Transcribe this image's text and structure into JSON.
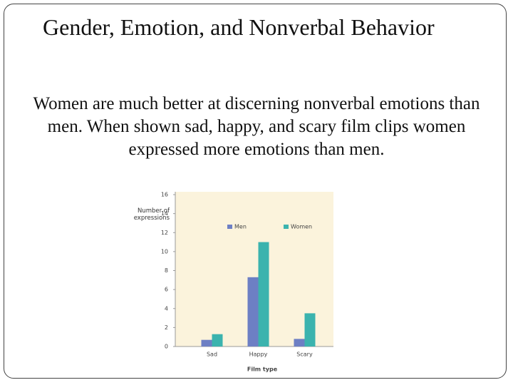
{
  "slide": {
    "title": "Gender, Emotion, and Nonverbal Behavior",
    "body": "Women are much better at discerning nonverbal emotions than men. When shown sad, happy, and scary film clips women expressed more emotions than men."
  },
  "chart_data": {
    "type": "bar",
    "xlabel": "Film type",
    "ylabel": "Number of expressions",
    "categories": [
      "Sad",
      "Happy",
      "Scary"
    ],
    "series": [
      {
        "name": "Men",
        "color": "#6d7fc4",
        "values": [
          0.7,
          7.3,
          0.8
        ]
      },
      {
        "name": "Women",
        "color": "#3bb3ae",
        "values": [
          1.3,
          11.0,
          3.5
        ]
      }
    ],
    "ylim": [
      0,
      16
    ],
    "yticks": [
      0,
      2,
      4,
      6,
      8,
      10,
      12,
      14,
      16
    ]
  }
}
